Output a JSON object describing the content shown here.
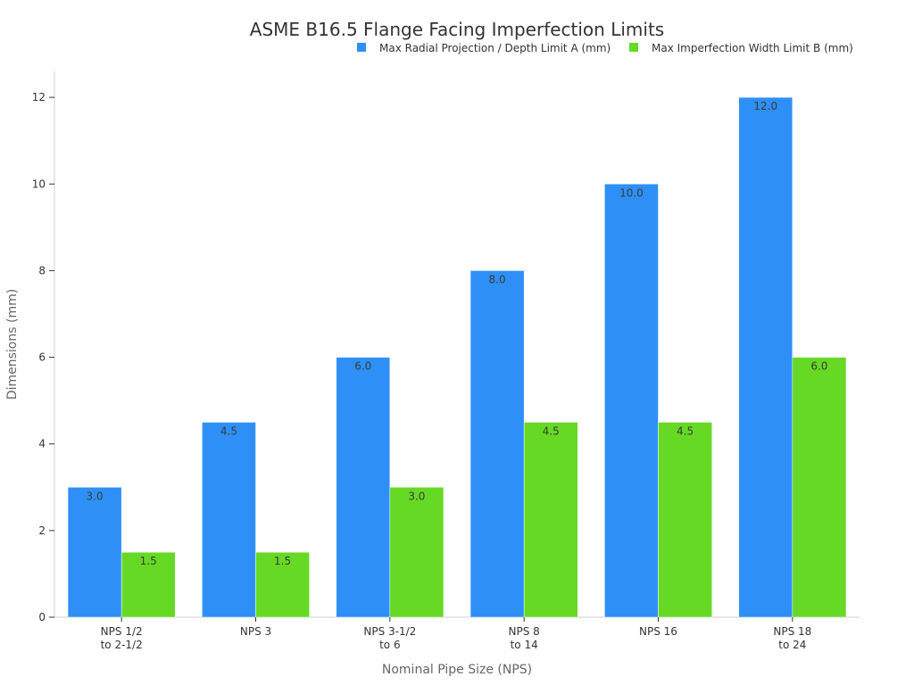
{
  "chart_data": {
    "type": "bar",
    "title": "ASME B16.5 Flange Facing Imperfection Limits",
    "xlabel": "Nominal Pipe Size (NPS)",
    "ylabel": "Dimensions (mm)",
    "categories": [
      [
        "NPS 1/2",
        "to 2-1/2"
      ],
      [
        "NPS 3"
      ],
      [
        "NPS 3-1/2",
        "to 6"
      ],
      [
        "NPS 8",
        "to 14"
      ],
      [
        "NPS 16"
      ],
      [
        "NPS 18",
        "to 24"
      ]
    ],
    "series": [
      {
        "name": "Max Radial Projection / Depth Limit A (mm)",
        "color": "#2e90f7",
        "values": [
          3.0,
          4.5,
          6.0,
          8.0,
          10.0,
          12.0
        ],
        "labels": [
          "3.0",
          "4.5",
          "6.0",
          "8.0",
          "10.0",
          "12.0"
        ]
      },
      {
        "name": "Max Imperfection Width Limit B (mm)",
        "color": "#66d925",
        "values": [
          1.5,
          1.5,
          3.0,
          4.5,
          4.5,
          6.0
        ],
        "labels": [
          "1.5",
          "1.5",
          "3.0",
          "4.5",
          "4.5",
          "6.0"
        ]
      }
    ],
    "ylim": [
      0,
      12.6
    ],
    "yticks": [
      0,
      2,
      4,
      6,
      8,
      10,
      12
    ],
    "ytick_labels": [
      "0",
      "2",
      "4",
      "6",
      "8",
      "10",
      "12"
    ],
    "legend": "top-right",
    "grid": false
  }
}
